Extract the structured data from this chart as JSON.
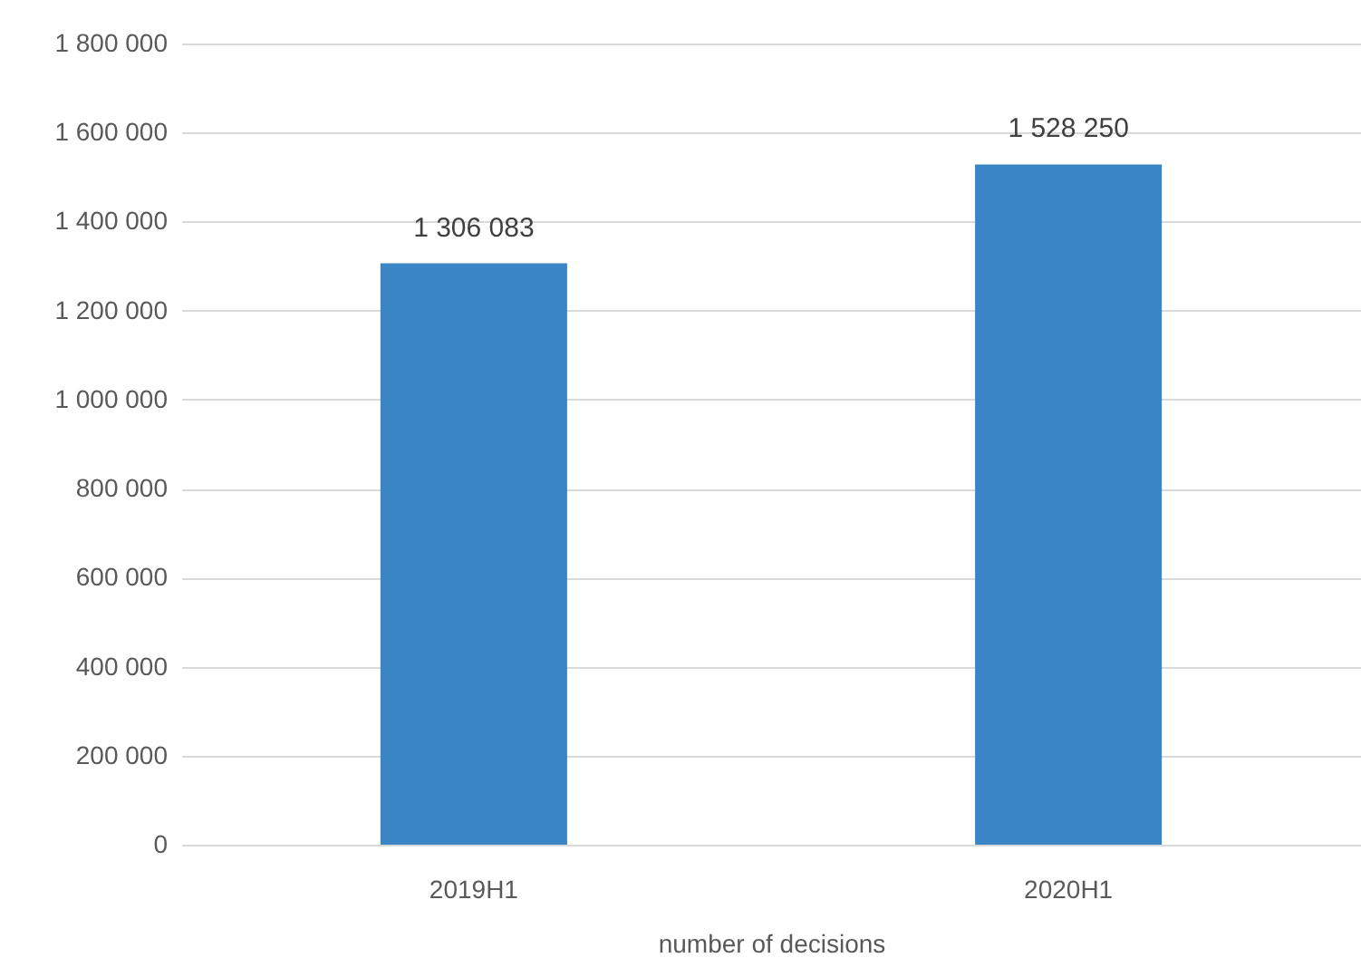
{
  "chart_data": {
    "type": "bar",
    "xlabel": "number of decisions",
    "categories": [
      "2019H1",
      "2020H1"
    ],
    "values": [
      1306083,
      1528250
    ],
    "color": "#3a85c6",
    "value_labels": [
      "1 306 083",
      "1 528 250"
    ],
    "ylim": [
      0,
      1800000
    ],
    "yticks": [
      {
        "value": 0,
        "label": "0"
      },
      {
        "value": 200000,
        "label": "200 000"
      },
      {
        "value": 400000,
        "label": "400 000"
      },
      {
        "value": 600000,
        "label": "600 000"
      },
      {
        "value": 800000,
        "label": "800 000"
      },
      {
        "value": 1000000,
        "label": "1 000 000"
      },
      {
        "value": 1200000,
        "label": "1 200 000"
      },
      {
        "value": 1400000,
        "label": "1 400 000"
      },
      {
        "value": 1600000,
        "label": "1 600 000"
      },
      {
        "value": 1800000,
        "label": "1 800 000"
      }
    ],
    "grid": "y"
  }
}
